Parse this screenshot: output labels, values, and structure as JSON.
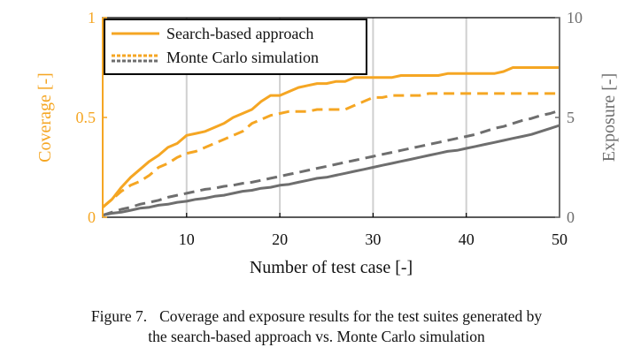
{
  "chart_data": {
    "type": "line",
    "xlabel": "Number of test case [-]",
    "ylabel_left": "Coverage [-]",
    "ylabel_right": "Exposure [-]",
    "xlim": [
      1,
      50
    ],
    "ylim_left": [
      0,
      1
    ],
    "ylim_right": [
      0,
      10
    ],
    "x_ticks": [
      10,
      20,
      30,
      40,
      50
    ],
    "y_left_ticks": [
      {
        "value": 0,
        "label": "0"
      },
      {
        "value": 0.5,
        "label": "0.5"
      },
      {
        "value": 1,
        "label": "1"
      }
    ],
    "y_right_ticks": [
      {
        "value": 0,
        "label": "0"
      },
      {
        "value": 5,
        "label": "5"
      },
      {
        "value": 10,
        "label": "10"
      }
    ],
    "grid": "vertical",
    "legend_position": "top-left",
    "legend": [
      {
        "label": "Search-based approach",
        "style": "solid"
      },
      {
        "label": "Monte Carlo simulation",
        "style": "dashed"
      }
    ],
    "colors": {
      "coverage": "#F5A623",
      "exposure": "#6E6E6E",
      "grid": "#D0D0D0",
      "frame": "#000000"
    },
    "series": [
      {
        "name": "Search-based approach coverage",
        "axis": "left",
        "style": "solid",
        "x": [
          1,
          2,
          3,
          4,
          5,
          6,
          7,
          8,
          9,
          10,
          11,
          12,
          13,
          14,
          15,
          16,
          17,
          18,
          19,
          20,
          21,
          22,
          23,
          24,
          25,
          26,
          27,
          28,
          29,
          30,
          31,
          32,
          33,
          34,
          35,
          36,
          37,
          38,
          39,
          40,
          41,
          42,
          43,
          44,
          45,
          46,
          47,
          48,
          49,
          50
        ],
        "values": [
          0.05,
          0.09,
          0.15,
          0.2,
          0.24,
          0.28,
          0.31,
          0.35,
          0.37,
          0.41,
          0.42,
          0.43,
          0.45,
          0.47,
          0.5,
          0.52,
          0.54,
          0.58,
          0.61,
          0.61,
          0.63,
          0.65,
          0.66,
          0.67,
          0.67,
          0.68,
          0.68,
          0.7,
          0.7,
          0.7,
          0.7,
          0.7,
          0.71,
          0.71,
          0.71,
          0.71,
          0.71,
          0.72,
          0.72,
          0.72,
          0.72,
          0.72,
          0.72,
          0.73,
          0.75,
          0.75,
          0.75,
          0.75,
          0.75,
          0.75
        ]
      },
      {
        "name": "Monte Carlo simulation coverage",
        "axis": "left",
        "style": "dashed",
        "x": [
          1,
          2,
          3,
          4,
          5,
          6,
          7,
          8,
          9,
          10,
          11,
          12,
          13,
          14,
          15,
          16,
          17,
          18,
          19,
          20,
          21,
          22,
          23,
          24,
          25,
          26,
          27,
          28,
          29,
          30,
          31,
          32,
          33,
          34,
          35,
          36,
          37,
          38,
          39,
          40,
          41,
          42,
          43,
          44,
          45,
          46,
          47,
          48,
          49,
          50
        ],
        "values": [
          0.05,
          0.09,
          0.13,
          0.16,
          0.18,
          0.21,
          0.25,
          0.27,
          0.3,
          0.32,
          0.33,
          0.35,
          0.37,
          0.39,
          0.41,
          0.43,
          0.47,
          0.49,
          0.51,
          0.52,
          0.53,
          0.53,
          0.53,
          0.54,
          0.54,
          0.54,
          0.54,
          0.56,
          0.58,
          0.6,
          0.6,
          0.61,
          0.61,
          0.61,
          0.61,
          0.62,
          0.62,
          0.62,
          0.62,
          0.62,
          0.62,
          0.62,
          0.62,
          0.62,
          0.62,
          0.62,
          0.62,
          0.62,
          0.62,
          0.62
        ]
      },
      {
        "name": "Search-based approach exposure",
        "axis": "right",
        "style": "solid",
        "x": [
          1,
          2,
          3,
          4,
          5,
          6,
          7,
          8,
          9,
          10,
          11,
          12,
          13,
          14,
          15,
          16,
          17,
          18,
          19,
          20,
          21,
          22,
          23,
          24,
          25,
          26,
          27,
          28,
          29,
          30,
          31,
          32,
          33,
          34,
          35,
          36,
          37,
          38,
          39,
          40,
          41,
          42,
          43,
          44,
          45,
          46,
          47,
          48,
          49,
          50
        ],
        "values": [
          0.1,
          0.2,
          0.25,
          0.35,
          0.45,
          0.5,
          0.6,
          0.65,
          0.75,
          0.8,
          0.9,
          0.95,
          1.05,
          1.1,
          1.2,
          1.3,
          1.35,
          1.45,
          1.5,
          1.6,
          1.65,
          1.75,
          1.85,
          1.95,
          2.0,
          2.1,
          2.2,
          2.3,
          2.4,
          2.5,
          2.6,
          2.7,
          2.8,
          2.9,
          3.0,
          3.1,
          3.2,
          3.3,
          3.35,
          3.45,
          3.55,
          3.65,
          3.75,
          3.85,
          3.95,
          4.05,
          4.15,
          4.3,
          4.45,
          4.6
        ]
      },
      {
        "name": "Monte Carlo simulation exposure",
        "axis": "right",
        "style": "dashed",
        "x": [
          1,
          2,
          3,
          4,
          5,
          6,
          7,
          8,
          9,
          10,
          11,
          12,
          13,
          14,
          15,
          16,
          17,
          18,
          19,
          20,
          21,
          22,
          23,
          24,
          25,
          26,
          27,
          28,
          29,
          30,
          31,
          32,
          33,
          34,
          35,
          36,
          37,
          38,
          39,
          40,
          41,
          42,
          43,
          44,
          45,
          46,
          47,
          48,
          49,
          50
        ],
        "values": [
          0.1,
          0.25,
          0.4,
          0.5,
          0.65,
          0.75,
          0.85,
          1.0,
          1.1,
          1.2,
          1.3,
          1.4,
          1.45,
          1.55,
          1.6,
          1.7,
          1.75,
          1.85,
          1.95,
          2.05,
          2.15,
          2.25,
          2.35,
          2.45,
          2.55,
          2.65,
          2.75,
          2.85,
          2.95,
          3.05,
          3.15,
          3.25,
          3.35,
          3.45,
          3.55,
          3.65,
          3.75,
          3.85,
          3.95,
          4.05,
          4.15,
          4.3,
          4.45,
          4.55,
          4.7,
          4.85,
          4.95,
          5.1,
          5.2,
          5.35
        ]
      }
    ]
  },
  "caption": {
    "figure_number": "Figure 7.",
    "line1": "Coverage and exposure results for the test suites generated by",
    "line2": "the search-based approach vs. Monte Carlo simulation"
  }
}
